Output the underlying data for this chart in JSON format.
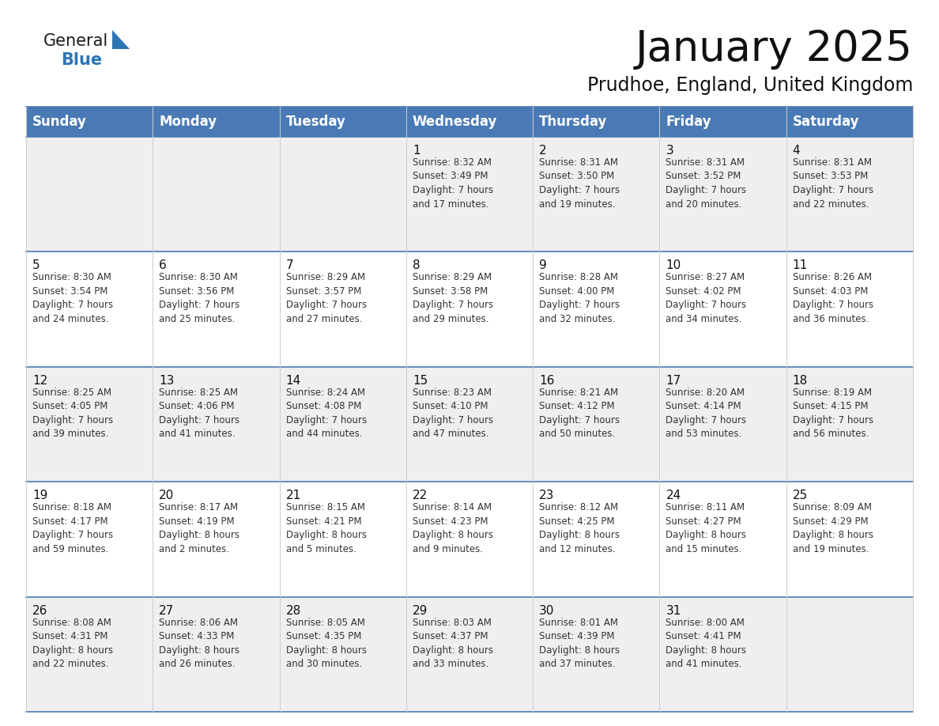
{
  "title": "January 2025",
  "subtitle": "Prudhoe, England, United Kingdom",
  "header_color": "#4a7ab5",
  "header_text_color": "#FFFFFF",
  "cell_bg_light": "#EFEFEF",
  "cell_bg_white": "#FFFFFF",
  "border_color": "#4a7ab5",
  "row_line_color": "#4a7ab5",
  "col_line_color": "#cccccc",
  "day_headers": [
    "Sunday",
    "Monday",
    "Tuesday",
    "Wednesday",
    "Thursday",
    "Friday",
    "Saturday"
  ],
  "title_fontsize": 38,
  "subtitle_fontsize": 17,
  "header_fontsize": 12,
  "cell_number_fontsize": 11,
  "cell_text_fontsize": 8.5,
  "logo_general_color": "#1a1a1a",
  "logo_blue_color": "#2E75B6",
  "weeks": [
    [
      {
        "day": "",
        "info": ""
      },
      {
        "day": "",
        "info": ""
      },
      {
        "day": "",
        "info": ""
      },
      {
        "day": "1",
        "info": "Sunrise: 8:32 AM\nSunset: 3:49 PM\nDaylight: 7 hours\nand 17 minutes."
      },
      {
        "day": "2",
        "info": "Sunrise: 8:31 AM\nSunset: 3:50 PM\nDaylight: 7 hours\nand 19 minutes."
      },
      {
        "day": "3",
        "info": "Sunrise: 8:31 AM\nSunset: 3:52 PM\nDaylight: 7 hours\nand 20 minutes."
      },
      {
        "day": "4",
        "info": "Sunrise: 8:31 AM\nSunset: 3:53 PM\nDaylight: 7 hours\nand 22 minutes."
      }
    ],
    [
      {
        "day": "5",
        "info": "Sunrise: 8:30 AM\nSunset: 3:54 PM\nDaylight: 7 hours\nand 24 minutes."
      },
      {
        "day": "6",
        "info": "Sunrise: 8:30 AM\nSunset: 3:56 PM\nDaylight: 7 hours\nand 25 minutes."
      },
      {
        "day": "7",
        "info": "Sunrise: 8:29 AM\nSunset: 3:57 PM\nDaylight: 7 hours\nand 27 minutes."
      },
      {
        "day": "8",
        "info": "Sunrise: 8:29 AM\nSunset: 3:58 PM\nDaylight: 7 hours\nand 29 minutes."
      },
      {
        "day": "9",
        "info": "Sunrise: 8:28 AM\nSunset: 4:00 PM\nDaylight: 7 hours\nand 32 minutes."
      },
      {
        "day": "10",
        "info": "Sunrise: 8:27 AM\nSunset: 4:02 PM\nDaylight: 7 hours\nand 34 minutes."
      },
      {
        "day": "11",
        "info": "Sunrise: 8:26 AM\nSunset: 4:03 PM\nDaylight: 7 hours\nand 36 minutes."
      }
    ],
    [
      {
        "day": "12",
        "info": "Sunrise: 8:25 AM\nSunset: 4:05 PM\nDaylight: 7 hours\nand 39 minutes."
      },
      {
        "day": "13",
        "info": "Sunrise: 8:25 AM\nSunset: 4:06 PM\nDaylight: 7 hours\nand 41 minutes."
      },
      {
        "day": "14",
        "info": "Sunrise: 8:24 AM\nSunset: 4:08 PM\nDaylight: 7 hours\nand 44 minutes."
      },
      {
        "day": "15",
        "info": "Sunrise: 8:23 AM\nSunset: 4:10 PM\nDaylight: 7 hours\nand 47 minutes."
      },
      {
        "day": "16",
        "info": "Sunrise: 8:21 AM\nSunset: 4:12 PM\nDaylight: 7 hours\nand 50 minutes."
      },
      {
        "day": "17",
        "info": "Sunrise: 8:20 AM\nSunset: 4:14 PM\nDaylight: 7 hours\nand 53 minutes."
      },
      {
        "day": "18",
        "info": "Sunrise: 8:19 AM\nSunset: 4:15 PM\nDaylight: 7 hours\nand 56 minutes."
      }
    ],
    [
      {
        "day": "19",
        "info": "Sunrise: 8:18 AM\nSunset: 4:17 PM\nDaylight: 7 hours\nand 59 minutes."
      },
      {
        "day": "20",
        "info": "Sunrise: 8:17 AM\nSunset: 4:19 PM\nDaylight: 8 hours\nand 2 minutes."
      },
      {
        "day": "21",
        "info": "Sunrise: 8:15 AM\nSunset: 4:21 PM\nDaylight: 8 hours\nand 5 minutes."
      },
      {
        "day": "22",
        "info": "Sunrise: 8:14 AM\nSunset: 4:23 PM\nDaylight: 8 hours\nand 9 minutes."
      },
      {
        "day": "23",
        "info": "Sunrise: 8:12 AM\nSunset: 4:25 PM\nDaylight: 8 hours\nand 12 minutes."
      },
      {
        "day": "24",
        "info": "Sunrise: 8:11 AM\nSunset: 4:27 PM\nDaylight: 8 hours\nand 15 minutes."
      },
      {
        "day": "25",
        "info": "Sunrise: 8:09 AM\nSunset: 4:29 PM\nDaylight: 8 hours\nand 19 minutes."
      }
    ],
    [
      {
        "day": "26",
        "info": "Sunrise: 8:08 AM\nSunset: 4:31 PM\nDaylight: 8 hours\nand 22 minutes."
      },
      {
        "day": "27",
        "info": "Sunrise: 8:06 AM\nSunset: 4:33 PM\nDaylight: 8 hours\nand 26 minutes."
      },
      {
        "day": "28",
        "info": "Sunrise: 8:05 AM\nSunset: 4:35 PM\nDaylight: 8 hours\nand 30 minutes."
      },
      {
        "day": "29",
        "info": "Sunrise: 8:03 AM\nSunset: 4:37 PM\nDaylight: 8 hours\nand 33 minutes."
      },
      {
        "day": "30",
        "info": "Sunrise: 8:01 AM\nSunset: 4:39 PM\nDaylight: 8 hours\nand 37 minutes."
      },
      {
        "day": "31",
        "info": "Sunrise: 8:00 AM\nSunset: 4:41 PM\nDaylight: 8 hours\nand 41 minutes."
      },
      {
        "day": "",
        "info": ""
      }
    ]
  ]
}
